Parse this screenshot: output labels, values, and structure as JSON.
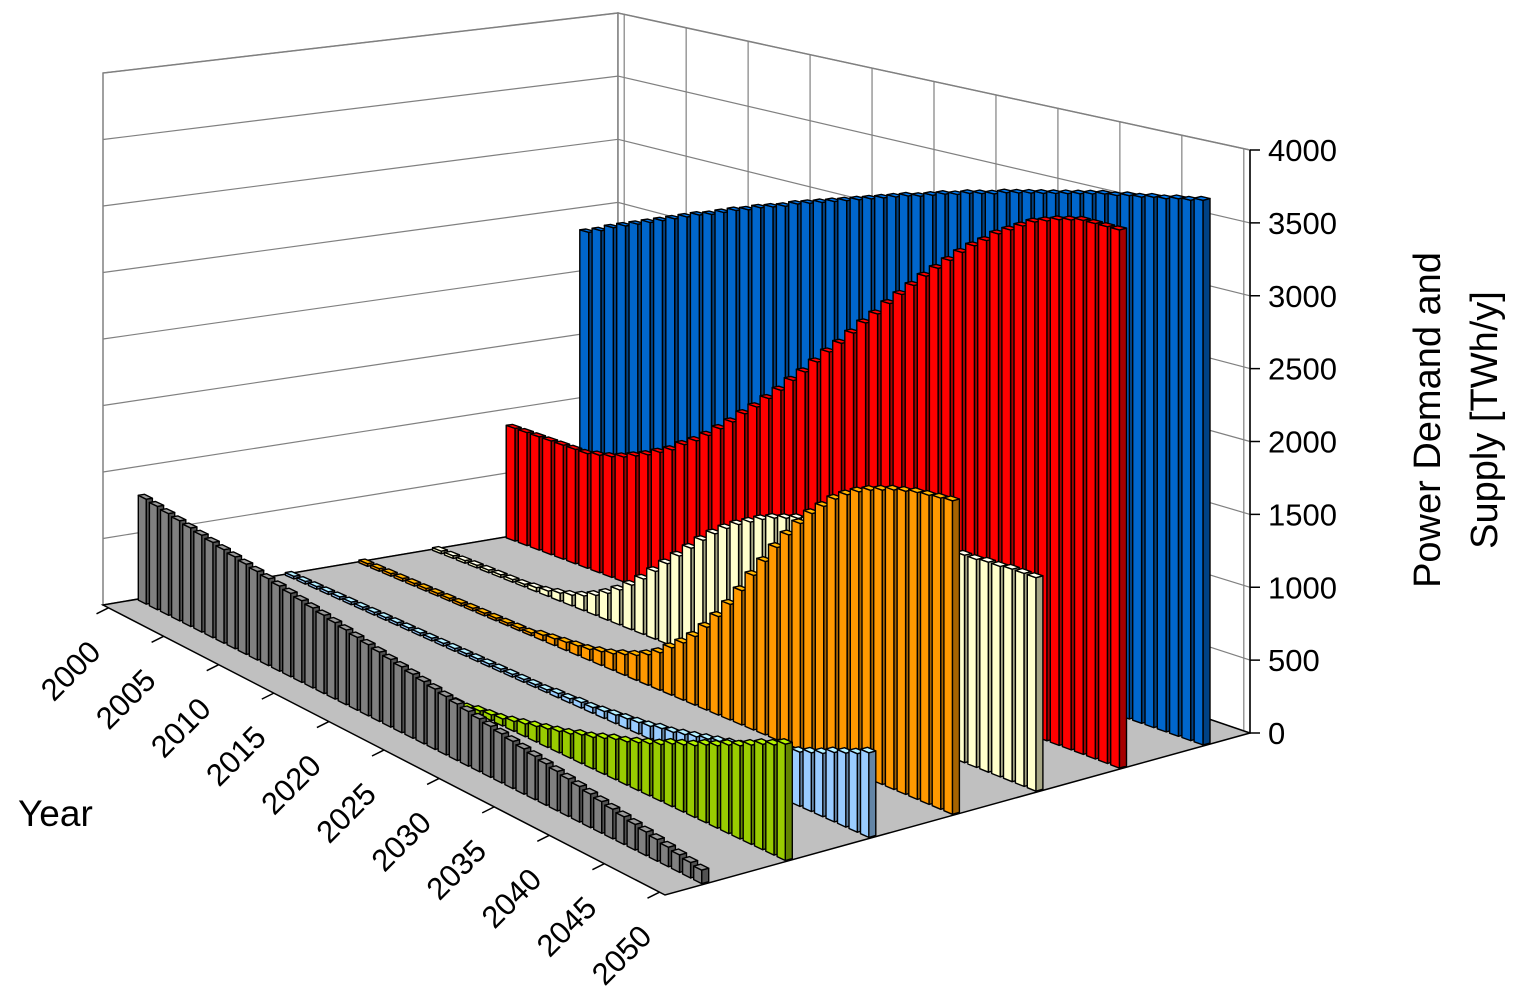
{
  "chart_data": {
    "type": "bar",
    "x_label": "Year",
    "y_label": [
      "Power Demand and",
      "Supply [TWh/y]"
    ],
    "x": [
      2000,
      2001,
      2002,
      2003,
      2004,
      2005,
      2006,
      2007,
      2008,
      2009,
      2010,
      2011,
      2012,
      2013,
      2014,
      2015,
      2016,
      2017,
      2018,
      2019,
      2020,
      2021,
      2022,
      2023,
      2024,
      2025,
      2026,
      2027,
      2028,
      2029,
      2030,
      2031,
      2032,
      2033,
      2034,
      2035,
      2036,
      2037,
      2038,
      2039,
      2040,
      2041,
      2042,
      2043,
      2044,
      2045,
      2046,
      2047,
      2048,
      2049,
      2050
    ],
    "xlim": [
      2000,
      2050
    ],
    "xticks": [
      2000,
      2005,
      2010,
      2015,
      2020,
      2025,
      2030,
      2035,
      2040,
      2045,
      2050
    ],
    "ylim": [
      0,
      4000
    ],
    "yticks": [
      0,
      500,
      1000,
      1500,
      2000,
      2500,
      3000,
      3500,
      4000
    ],
    "grid": true,
    "series": [
      {
        "color": "#808080",
        "values": [
          790,
          776,
          762,
          748,
          734,
          720,
          706,
          692,
          678,
          664,
          650,
          636,
          622,
          608,
          594,
          580,
          566,
          552,
          538,
          524,
          510,
          496,
          482,
          468,
          454,
          440,
          426,
          412,
          398,
          384,
          370,
          356,
          342,
          328,
          314,
          300,
          286,
          272,
          258,
          244,
          230,
          216,
          202,
          188,
          174,
          160,
          146,
          132,
          118,
          104,
          90
        ]
      },
      {
        "color": "#99cc00",
        "values": [
          10,
          10,
          10,
          10,
          10,
          10,
          10,
          10,
          10,
          10,
          10,
          10,
          10,
          10,
          10,
          10,
          10,
          10,
          10,
          10,
          10,
          10,
          10,
          30,
          40,
          50,
          70,
          90,
          110,
          130,
          150,
          170,
          200,
          220,
          250,
          280,
          300,
          330,
          360,
          390,
          430,
          460,
          490,
          530,
          560,
          600,
          630,
          670,
          710,
          740,
          780
        ]
      },
      {
        "color": "#99ccff",
        "values": [
          20,
          20,
          20,
          20,
          20,
          20,
          20,
          20,
          20,
          20,
          20,
          20,
          20,
          20,
          20,
          20,
          20,
          20,
          20,
          20,
          20,
          20,
          20,
          30,
          30,
          40,
          40,
          50,
          60,
          70,
          80,
          90,
          110,
          120,
          140,
          160,
          180,
          200,
          220,
          240,
          260,
          290,
          320,
          340,
          370,
          400,
          430,
          470,
          500,
          530,
          570
        ]
      },
      {
        "color": "#ff9900",
        "values": [
          20,
          20,
          20,
          20,
          20,
          20,
          20,
          20,
          20,
          20,
          20,
          20,
          20,
          20,
          20,
          40,
          50,
          60,
          70,
          80,
          100,
          120,
          150,
          180,
          220,
          270,
          340,
          410,
          490,
          590,
          700,
          820,
          950,
          1090,
          1220,
          1350,
          1470,
          1580,
          1680,
          1760,
          1840,
          1900,
          1950,
          1990,
          2020,
          2050,
          2070,
          2090,
          2100,
          2110,
          2120
        ]
      },
      {
        "color": "#ffffcc",
        "values": [
          20,
          20,
          20,
          20,
          20,
          20,
          20,
          20,
          30,
          40,
          60,
          80,
          110,
          150,
          200,
          260,
          330,
          410,
          500,
          590,
          680,
          770,
          860,
          940,
          1010,
          1070,
          1120,
          1170,
          1210,
          1240,
          1270,
          1290,
          1310,
          1330,
          1340,
          1360,
          1370,
          1380,
          1390,
          1400,
          1400,
          1410,
          1420,
          1420,
          1430,
          1430,
          1440,
          1440,
          1450,
          1450,
          1450
        ]
      },
      {
        "color": "#ff0000",
        "values": [
          880,
          880,
          880,
          880,
          880,
          880,
          880,
          900,
          920,
          950,
          990,
          1030,
          1080,
          1130,
          1200,
          1260,
          1330,
          1410,
          1490,
          1580,
          1660,
          1750,
          1840,
          1940,
          2030,
          2130,
          2230,
          2320,
          2420,
          2520,
          2610,
          2710,
          2800,
          2890,
          2980,
          3060,
          3140,
          3220,
          3290,
          3350,
          3420,
          3470,
          3520,
          3570,
          3600,
          3630,
          3650,
          3670,
          3670,
          3670,
          3670
        ]
      },
      {
        "color": "#0066cc",
        "values": [
          2330,
          2370,
          2420,
          2460,
          2500,
          2540,
          2580,
          2620,
          2660,
          2700,
          2730,
          2770,
          2810,
          2840,
          2880,
          2910,
          2940,
          2980,
          3010,
          3040,
          3070,
          3100,
          3130,
          3160,
          3190,
          3220,
          3250,
          3270,
          3300,
          3330,
          3350,
          3380,
          3400,
          3420,
          3450,
          3470,
          3490,
          3510,
          3530,
          3550,
          3570,
          3590,
          3610,
          3620,
          3640,
          3650,
          3670,
          3680,
          3700,
          3710,
          3730
        ]
      }
    ]
  }
}
